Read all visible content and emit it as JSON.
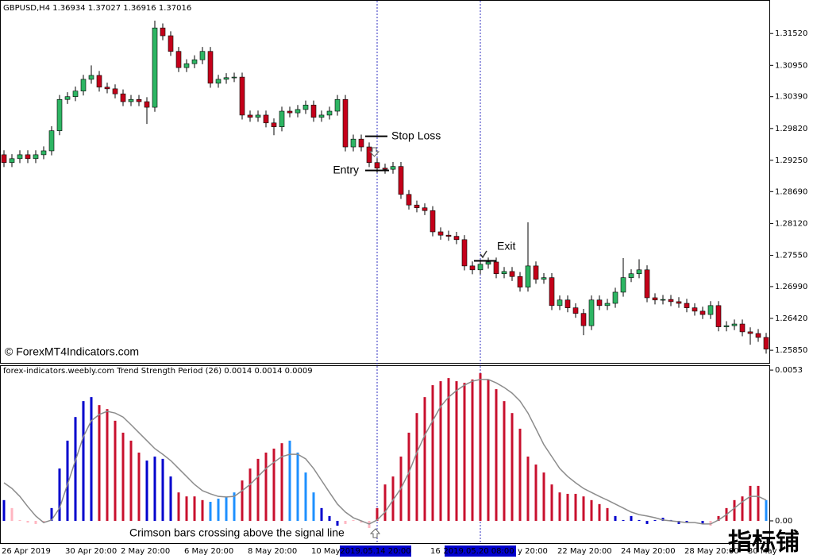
{
  "chart_data": [
    {
      "type": "candlestick",
      "title": "GBPUSD,H4  1.36934 1.37027 1.36916 1.37016",
      "watermark": "© ForexMT4Indicators.com",
      "up_color": "#2db563",
      "down_color": "#c4001a",
      "ylim": [
        1.2561,
        1.3212
      ],
      "yticks": [
        {
          "value": 1.3152,
          "label": "1.31520"
        },
        {
          "value": 1.3095,
          "label": "1.30950"
        },
        {
          "value": 1.3039,
          "label": "1.30390"
        },
        {
          "value": 1.2982,
          "label": "1.29820"
        },
        {
          "value": 1.2925,
          "label": "1.29250"
        },
        {
          "value": 1.2869,
          "label": "1.28690"
        },
        {
          "value": 1.2812,
          "label": "1.28120"
        },
        {
          "value": 1.2755,
          "label": "1.27550"
        },
        {
          "value": 1.2699,
          "label": "1.26990"
        },
        {
          "value": 1.2642,
          "label": "1.26420"
        },
        {
          "value": 1.2585,
          "label": "1.25850"
        }
      ],
      "annotations": [
        {
          "text": "Stop Loss",
          "value": 1.2968
        },
        {
          "text": "Entry",
          "value": 1.2907
        },
        {
          "text": "Exit",
          "value": 1.2745
        }
      ],
      "open": [
        1.2935,
        1.2921,
        1.2928,
        1.2935,
        1.2928,
        1.2935,
        1.2942,
        1.2978,
        1.3034,
        1.3039,
        1.3049,
        1.307,
        1.3077,
        1.3056,
        1.3053,
        1.3044,
        1.303,
        1.3034,
        1.303,
        1.302,
        1.3162,
        1.3148,
        1.312,
        1.3091,
        1.3098,
        1.3105,
        1.312,
        1.3063,
        1.307,
        1.3073,
        1.3074,
        1.3006,
        1.3002,
        1.3006,
        1.2992,
        1.2985,
        1.3013,
        1.301,
        1.3016,
        1.3024,
        1.3002,
        1.3006,
        1.3013,
        1.3034,
        1.2949,
        1.2963,
        1.2949,
        1.2921,
        1.2911,
        1.2909,
        1.2914,
        1.2864,
        1.2845,
        1.284,
        1.2835,
        1.2797,
        1.2791,
        1.2789,
        1.2783,
        1.2736,
        1.2729,
        1.2739,
        1.2743,
        1.2722,
        1.2726,
        1.2717,
        1.2698,
        1.2736,
        1.2712,
        1.2715,
        1.2665,
        1.2675,
        1.2661,
        1.2651,
        1.2629,
        1.2675,
        1.2665,
        1.2669,
        1.2689,
        1.2715,
        1.2722,
        1.2729,
        1.2679,
        1.2675,
        1.2676,
        1.2672,
        1.2669,
        1.2661,
        1.2655,
        1.2649,
        1.2665,
        1.2627,
        1.2629,
        1.2632,
        1.2618,
        1.2615,
        1.2608
      ],
      "high": [
        1.2943,
        1.2936,
        1.2943,
        1.2943,
        1.2943,
        1.295,
        1.2986,
        1.3042,
        1.3047,
        1.3057,
        1.3078,
        1.3095,
        1.3085,
        1.3064,
        1.3061,
        1.3052,
        1.3042,
        1.3042,
        1.3038,
        1.3175,
        1.317,
        1.3156,
        1.3128,
        1.3106,
        1.3113,
        1.3128,
        1.3128,
        1.3078,
        1.3081,
        1.3082,
        1.3082,
        1.3014,
        1.3014,
        1.3014,
        1.3,
        1.3021,
        1.3021,
        1.3024,
        1.3032,
        1.3032,
        1.3014,
        1.3021,
        1.3042,
        1.3042,
        1.2971,
        1.2971,
        1.2957,
        1.2929,
        1.2919,
        1.2922,
        1.2922,
        1.2872,
        1.2853,
        1.2848,
        1.2843,
        1.2805,
        1.2799,
        1.2797,
        1.2791,
        1.2744,
        1.2747,
        1.2751,
        1.2751,
        1.2734,
        1.2734,
        1.2725,
        1.2814,
        1.2744,
        1.2723,
        1.2723,
        1.2683,
        1.2683,
        1.2669,
        1.2659,
        1.2683,
        1.2683,
        1.2677,
        1.2697,
        1.275,
        1.273,
        1.2748,
        1.2737,
        1.2687,
        1.2684,
        1.2684,
        1.268,
        1.2677,
        1.2669,
        1.2663,
        1.2673,
        1.2673,
        1.2637,
        1.264,
        1.264,
        1.2626,
        1.2623,
        1.2616
      ],
      "low": [
        1.2913,
        1.2913,
        1.292,
        1.292,
        1.292,
        1.2927,
        1.2934,
        1.297,
        1.3026,
        1.3031,
        1.3041,
        1.3062,
        1.3048,
        1.3045,
        1.3036,
        1.3022,
        1.3022,
        1.3022,
        1.299,
        1.3012,
        1.314,
        1.3112,
        1.3083,
        1.3083,
        1.309,
        1.3097,
        1.3055,
        1.3055,
        1.3062,
        1.3065,
        1.2998,
        1.2994,
        1.2994,
        1.2984,
        1.297,
        1.2977,
        1.3002,
        1.3002,
        1.3008,
        1.2994,
        1.2994,
        1.2998,
        1.3005,
        1.2941,
        1.2941,
        1.2941,
        1.2913,
        1.2903,
        1.2901,
        1.2901,
        1.2856,
        1.2837,
        1.2832,
        1.2827,
        1.2789,
        1.2783,
        1.2781,
        1.2775,
        1.2728,
        1.2721,
        1.2721,
        1.2731,
        1.2714,
        1.2714,
        1.2709,
        1.269,
        1.269,
        1.2704,
        1.2704,
        1.2657,
        1.2657,
        1.2653,
        1.2643,
        1.2612,
        1.2621,
        1.2657,
        1.2657,
        1.2661,
        1.2681,
        1.2707,
        1.2714,
        1.2671,
        1.2667,
        1.2667,
        1.2664,
        1.2661,
        1.2653,
        1.2647,
        1.2641,
        1.2641,
        1.2619,
        1.2619,
        1.2621,
        1.261,
        1.2595,
        1.26,
        1.2579
      ],
      "close": [
        1.2921,
        1.2928,
        1.2935,
        1.2928,
        1.2935,
        1.2942,
        1.2978,
        1.3034,
        1.3039,
        1.3049,
        1.307,
        1.3077,
        1.3056,
        1.3053,
        1.3044,
        1.303,
        1.3034,
        1.303,
        1.302,
        1.3162,
        1.3148,
        1.312,
        1.3091,
        1.3098,
        1.3105,
        1.312,
        1.3063,
        1.307,
        1.3073,
        1.3074,
        1.3006,
        1.3002,
        1.3006,
        1.2992,
        1.2985,
        1.3013,
        1.301,
        1.3016,
        1.3024,
        1.3002,
        1.3006,
        1.3013,
        1.3034,
        1.2949,
        1.2963,
        1.2949,
        1.2921,
        1.2911,
        1.2909,
        1.2914,
        1.2864,
        1.2845,
        1.284,
        1.2835,
        1.2797,
        1.2791,
        1.2789,
        1.2783,
        1.2736,
        1.2729,
        1.2739,
        1.2743,
        1.2722,
        1.2726,
        1.2717,
        1.2698,
        1.2736,
        1.2712,
        1.2715,
        1.2665,
        1.2675,
        1.2661,
        1.2651,
        1.2629,
        1.2675,
        1.2665,
        1.2669,
        1.2689,
        1.2715,
        1.2722,
        1.2729,
        1.2679,
        1.2675,
        1.2676,
        1.2672,
        1.2669,
        1.2661,
        1.2655,
        1.2649,
        1.2665,
        1.2627,
        1.2629,
        1.2632,
        1.2618,
        1.2615,
        1.2608,
        1.2587
      ]
    },
    {
      "type": "bar",
      "title": "forex-indicators.weebly.com Trend Strength Period (26) 0.0014 0.0014 0.0009",
      "annotation": "Crimson bars crossing above the signal line",
      "brand": "指标铺",
      "ylim": [
        -0.00081,
        0.00547
      ],
      "yticks": [
        0.0053,
        {
          "value": 0,
          "label": "0.00"
        }
      ],
      "categories": [
        "26 Apr 2019",
        null,
        null,
        null,
        null,
        null,
        null,
        null,
        "30 Apr 20:00",
        null,
        null,
        null,
        null,
        null,
        null,
        "2 May 20:00",
        null,
        null,
        null,
        null,
        null,
        null,
        null,
        "6 May 20:00",
        null,
        null,
        null,
        null,
        null,
        null,
        null,
        "8 May 20:00",
        null,
        null,
        null,
        null,
        null,
        null,
        null,
        "10 May",
        null,
        null,
        null,
        null,
        null,
        null,
        null,
        "2019.05.14 20:00",
        null,
        null,
        null,
        null,
        null,
        null,
        "16",
        null,
        null,
        null,
        null,
        null,
        "2019.05.20 08:00",
        null,
        null,
        null,
        null,
        "y 20:00",
        null,
        null,
        null,
        null,
        "22 May 20:00",
        null,
        null,
        null,
        null,
        null,
        null,
        null,
        "24 May 20:00",
        null,
        null,
        null,
        null,
        null,
        null,
        null,
        "28 May 20:00",
        null,
        null,
        null,
        null,
        null,
        null,
        null,
        "30 May",
        null,
        null
      ],
      "values": [
        0.00073,
        0.00045,
        3e-05,
        -6e-05,
        -0.00011,
        -6e-05,
        0.00045,
        0.00184,
        0.00282,
        0.00365,
        0.00421,
        0.00435,
        0.00407,
        0.00393,
        0.00352,
        0.0031,
        0.00282,
        0.0024,
        0.00212,
        0.00226,
        0.00218,
        0.00156,
        0.001,
        0.00086,
        0.00086,
        0.00073,
        0.00067,
        0.00078,
        0.00084,
        0.001,
        0.00142,
        0.00184,
        0.00218,
        0.0024,
        0.00254,
        0.00273,
        0.00282,
        0.0024,
        0.0017,
        0.001,
        0.00045,
        0.00017,
        -0.00017,
        -0.00011,
        3e-05,
        -6e-05,
        -0.00025,
        0.00045,
        0.00128,
        0.00156,
        0.00226,
        0.0031,
        0.00379,
        0.00435,
        0.00477,
        0.00491,
        0.00502,
        0.00491,
        0.00485,
        0.00497,
        0.00519,
        0.00497,
        0.00463,
        0.00421,
        0.00379,
        0.00324,
        0.00226,
        0.00198,
        0.0017,
        0.00128,
        0.001,
        0.00095,
        0.00095,
        0.00086,
        0.00073,
        0.00059,
        0.00045,
        0.00017,
        3e-05,
        0.00017,
        3e-05,
        -0.00011,
        3e-05,
        0.00011,
        3e-05,
        -0.00011,
        -6e-05,
        0,
        -0.00011,
        -0.00017,
        0.00017,
        0.00045,
        0.00073,
        0.00086,
        0.00123,
        0.00123,
        0.00073
      ],
      "colors": [
        "#0000cd",
        "#ffb6c1",
        "#ffb6c1",
        "#ffb6c1",
        "#ffb6c1",
        "#ffb6c1",
        "#0000cd",
        "#0000cd",
        "#0000cd",
        "#0000cd",
        "#0000cd",
        "#0000cd",
        "#c8102e",
        "#c8102e",
        "#c8102e",
        "#c8102e",
        "#c8102e",
        "#c8102e",
        "#0000cd",
        "#0000cd",
        "#0000cd",
        "#0000cd",
        "#c8102e",
        "#c8102e",
        "#c8102e",
        "#c8102e",
        "#1e90ff",
        "#1e90ff",
        "#1e90ff",
        "#1e90ff",
        "#c8102e",
        "#c8102e",
        "#c8102e",
        "#c8102e",
        "#c8102e",
        "#c8102e",
        "#1e90ff",
        "#1e90ff",
        "#1e90ff",
        "#1e90ff",
        "#0000cd",
        "#0000cd",
        "#0000cd",
        "#ffb6c1",
        "#ffb6c1",
        "#ffb6c1",
        "#ffb6c1",
        "#c8102e",
        "#c8102e",
        "#c8102e",
        "#c8102e",
        "#c8102e",
        "#c8102e",
        "#c8102e",
        "#c8102e",
        "#c8102e",
        "#c8102e",
        "#c8102e",
        "#c8102e",
        "#c8102e",
        "#c8102e",
        "#c8102e",
        "#c8102e",
        "#c8102e",
        "#c8102e",
        "#c8102e",
        "#c8102e",
        "#c8102e",
        "#c8102e",
        "#c8102e",
        "#c8102e",
        "#c8102e",
        "#c8102e",
        "#c8102e",
        "#c8102e",
        "#c8102e",
        "#c8102e",
        "#0000cd",
        "#0000cd",
        "#0000cd",
        "#0000cd",
        "#0000cd",
        "#0000cd",
        "#0000cd",
        "#0000cd",
        "#0000cd",
        "#0000cd",
        "#0000cd",
        "#0000cd",
        "#ffb6c1",
        "#c8102e",
        "#c8102e",
        "#c8102e",
        "#c8102e",
        "#c8102e",
        "#c8102e",
        "#1e90ff"
      ],
      "signal": {
        "color": "#8c8c8c",
        "values": [
          0.00134,
          0.00114,
          0.00086,
          0.0005,
          0.00017,
          -6e-05,
          3e-05,
          0.00045,
          0.00128,
          0.00212,
          0.00296,
          0.00352,
          0.00374,
          0.00385,
          0.00379,
          0.00365,
          0.00338,
          0.0031,
          0.00282,
          0.00254,
          0.00234,
          0.00212,
          0.00184,
          0.00156,
          0.00128,
          0.00106,
          0.00095,
          0.00086,
          0.00084,
          0.00086,
          0.00106,
          0.00128,
          0.00156,
          0.00184,
          0.00206,
          0.00226,
          0.00234,
          0.00234,
          0.00218,
          0.00184,
          0.00142,
          0.001,
          0.00059,
          0.00031,
          0.00011,
          0,
          -0.00011,
          3e-05,
          0.00031,
          0.00073,
          0.00114,
          0.0017,
          0.0024,
          0.00301,
          0.00352,
          0.00402,
          0.00435,
          0.00458,
          0.00477,
          0.00491,
          0.00497,
          0.00497,
          0.00485,
          0.00469,
          0.00449,
          0.00421,
          0.00379,
          0.00324,
          0.00268,
          0.00226,
          0.00184,
          0.00156,
          0.00134,
          0.00114,
          0.001,
          0.00086,
          0.00073,
          0.00059,
          0.00045,
          0.00031,
          0.00022,
          0.00017,
          0.00011,
          3e-05,
          0,
          -3e-05,
          -6e-05,
          -6e-05,
          -0.00011,
          -0.00011,
          3e-05,
          0.00022,
          0.00045,
          0.00067,
          0.00086,
          0.00086,
          0.00073
        ]
      }
    }
  ]
}
